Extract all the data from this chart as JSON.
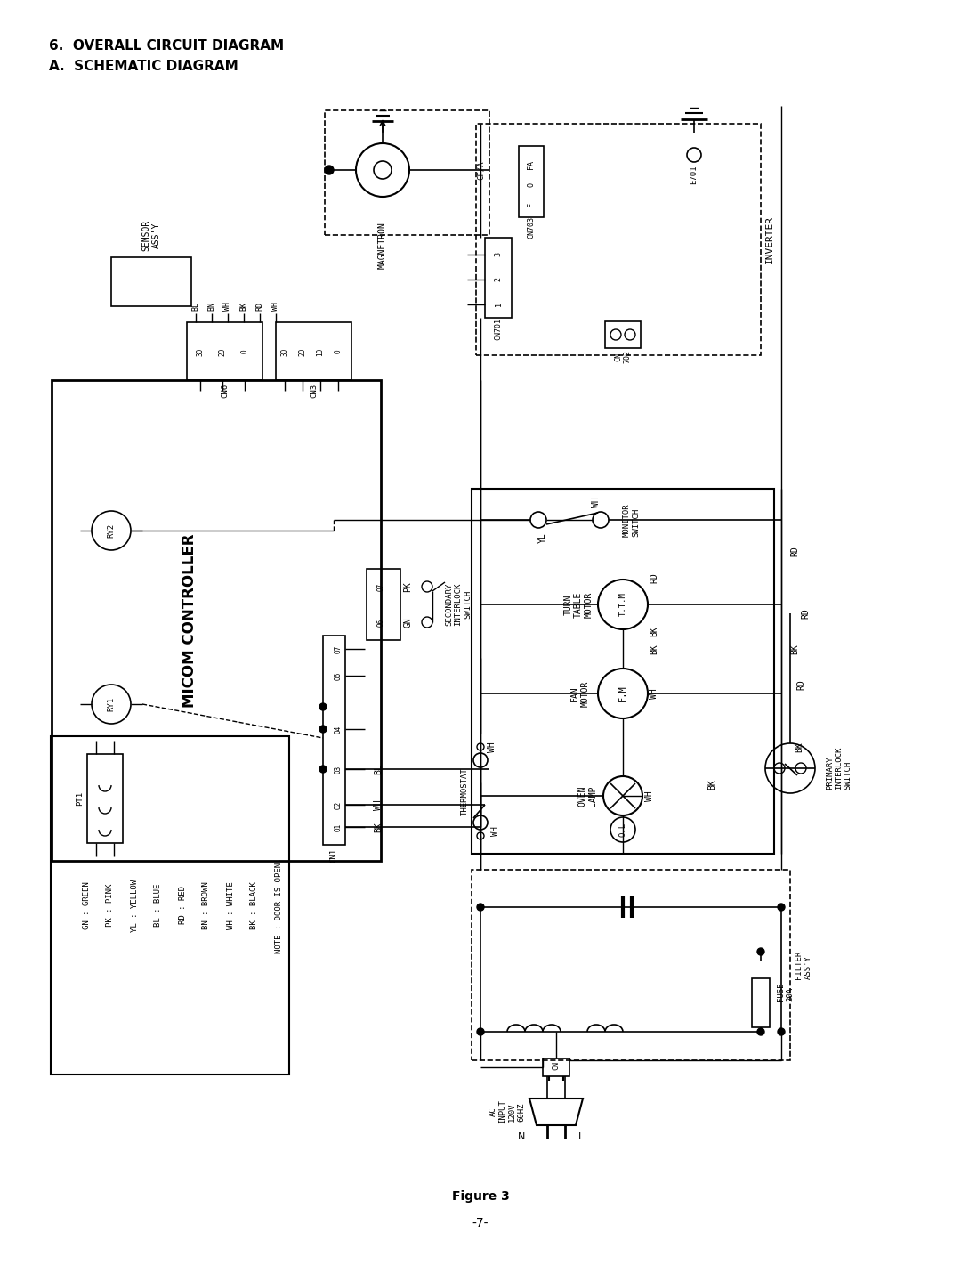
{
  "title1": "6.  OVERALL CIRCUIT DIAGRAM",
  "title2": "A.  SCHEMATIC DIAGRAM",
  "figure_label": "Figure 3",
  "page_number": "-7-",
  "bg_color": "#ffffff",
  "line_color": "#000000"
}
